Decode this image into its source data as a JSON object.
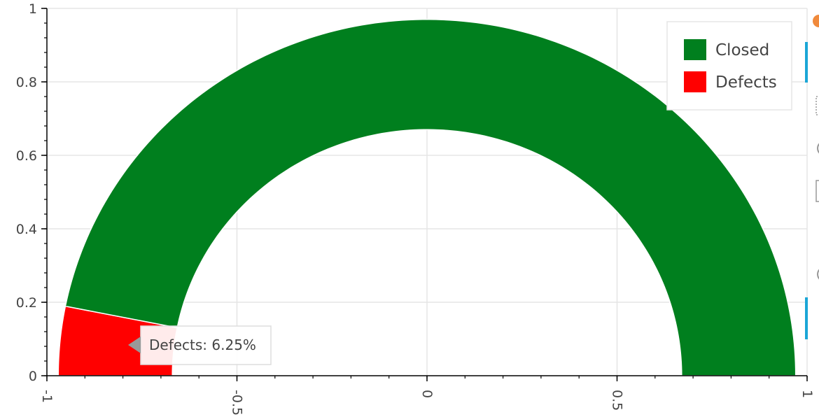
{
  "chart_data": {
    "type": "pie",
    "variant": "semicircle-donut",
    "inner_radius": 0.67,
    "outer_radius": 0.97,
    "slices": [
      {
        "name": "Defects",
        "fraction": 0.0625,
        "color": "#ff0000"
      },
      {
        "name": "Closed",
        "fraction": 0.9375,
        "color": "#007f1e"
      }
    ],
    "xlim": [
      -1,
      1
    ],
    "ylim": [
      0,
      1
    ],
    "xticks": [
      -1,
      -0.5,
      0,
      0.5,
      1
    ],
    "yticks": [
      0,
      0.2,
      0.4,
      0.6,
      0.8,
      1
    ],
    "xtick_labels": [
      "-1",
      "-0.5",
      "0",
      "0.5",
      "1"
    ],
    "ytick_labels": [
      "0",
      "0.2",
      "0.4",
      "0.6",
      "0.8",
      "1"
    ],
    "grid": true,
    "legend": {
      "position": "top-right",
      "entries": [
        {
          "label": "Closed",
          "color": "#007f1e"
        },
        {
          "label": "Defects",
          "color": "#ff0000"
        }
      ]
    },
    "tooltip": {
      "text": "Defects: 6.25%"
    }
  }
}
